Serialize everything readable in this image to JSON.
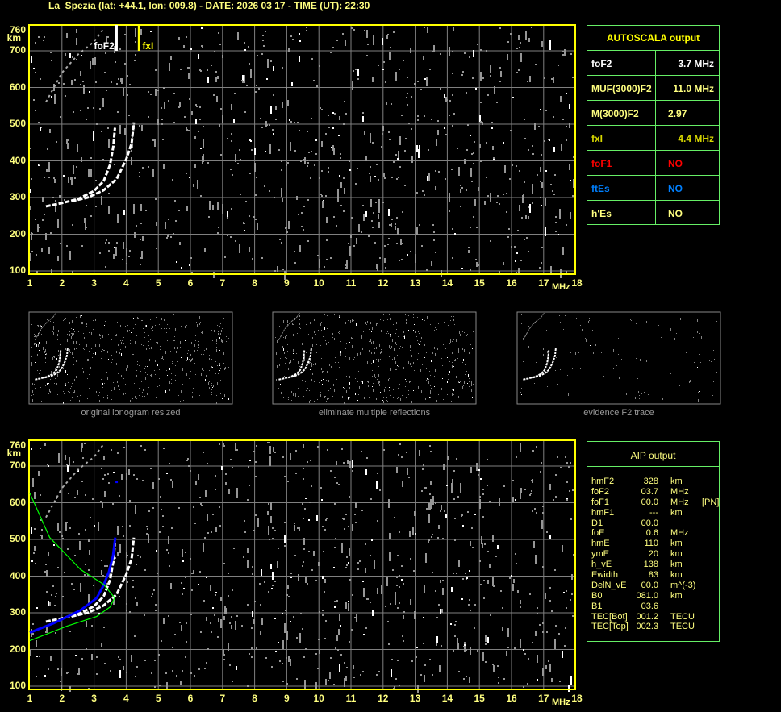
{
  "header": {
    "title": "La_Spezia (lat: +44.1, lon: 009.8) - DATE: 2026 03 17 - TIME (UT): 22:30"
  },
  "colors": {
    "axis": "#ffff00",
    "grid": "#808080",
    "trace": "#ffffff",
    "profile": "#00ff00",
    "aip_trace": "#0000ff",
    "table_border": "#66ee66"
  },
  "chart_data": [
    {
      "type": "scatter",
      "title": "",
      "xlabel": "MHz",
      "ylabel": "km",
      "xlim": [
        1,
        18
      ],
      "ylim": [
        100,
        760
      ],
      "grid": true,
      "xticks": [
        "1",
        "2",
        "3",
        "4",
        "5",
        "6",
        "7",
        "8",
        "9",
        "10",
        "11",
        "12",
        "13",
        "14",
        "15",
        "16",
        "17",
        "18"
      ],
      "yticks": [
        "760",
        "700",
        "600",
        "500",
        "400",
        "300",
        "200",
        "100"
      ],
      "markers": [
        {
          "label": "foF2",
          "freq": 3.7,
          "color": "#ffffff"
        },
        {
          "label": "fxI",
          "freq": 4.4,
          "color": "#ffff00"
        }
      ],
      "series": [
        {
          "kind": "o-trace",
          "points": [
            [
              1.5,
              276
            ],
            [
              2,
              285
            ],
            [
              2.5,
              296
            ],
            [
              3,
              318
            ],
            [
              3.3,
              345
            ],
            [
              3.5,
              390
            ],
            [
              3.6,
              440
            ],
            [
              3.65,
              490
            ]
          ]
        },
        {
          "kind": "x-trace",
          "points": [
            [
              2.3,
              290
            ],
            [
              2.8,
              300
            ],
            [
              3.3,
              320
            ],
            [
              3.7,
              350
            ],
            [
              4.0,
              404
            ],
            [
              4.17,
              448
            ],
            [
              4.24,
              505
            ]
          ]
        },
        {
          "kind": "second-hop",
          "points": [
            [
              1.5,
              560
            ],
            [
              2,
              640
            ],
            [
              2.5,
              690
            ],
            [
              3,
              725
            ],
            [
              3.3,
              760
            ]
          ]
        }
      ]
    },
    {
      "type": "scatter",
      "title": "",
      "xlabel": "MHz",
      "ylabel": "km",
      "xlim": [
        1,
        18
      ],
      "ylim": [
        100,
        760
      ],
      "grid": true,
      "xticks": [
        "1",
        "2",
        "3",
        "4",
        "5",
        "6",
        "7",
        "8",
        "9",
        "10",
        "11",
        "12",
        "13",
        "14",
        "15",
        "16",
        "17",
        "18"
      ],
      "yticks": [
        "760",
        "700",
        "600",
        "500",
        "400",
        "300",
        "200",
        "100"
      ],
      "series": [
        {
          "kind": "o-trace",
          "points": [
            [
              1.5,
              276
            ],
            [
              2,
              285
            ],
            [
              2.5,
              296
            ],
            [
              3,
              318
            ],
            [
              3.3,
              345
            ],
            [
              3.5,
              390
            ],
            [
              3.6,
              440
            ],
            [
              3.65,
              490
            ]
          ]
        },
        {
          "kind": "x-trace",
          "points": [
            [
              2.3,
              290
            ],
            [
              2.8,
              300
            ],
            [
              3.3,
              320
            ],
            [
              3.7,
              350
            ],
            [
              4.0,
              404
            ],
            [
              4.17,
              448
            ],
            [
              4.24,
              505
            ]
          ]
        },
        {
          "kind": "second-hop",
          "points": [
            [
              1.5,
              560
            ],
            [
              2,
              640
            ],
            [
              2.5,
              690
            ],
            [
              3,
              725
            ],
            [
              3.3,
              760
            ]
          ]
        },
        {
          "kind": "aip-fit",
          "color": "#0000ff",
          "points": [
            [
              1,
              246
            ],
            [
              1.75,
              272
            ],
            [
              2.58,
              307
            ],
            [
              3.08,
              340
            ],
            [
              3.29,
              374
            ],
            [
              3.46,
              411
            ],
            [
              3.59,
              455
            ],
            [
              3.66,
              505
            ]
          ],
          "extra_point": [
            3.69,
            658
          ]
        },
        {
          "kind": "density-profile",
          "color": "#00ff00",
          "points": [
            [
              1,
              626
            ],
            [
              1.62,
              505
            ],
            [
              2.58,
              418
            ],
            [
              3.29,
              378
            ],
            [
              3.64,
              341
            ],
            [
              3.5,
              316
            ],
            [
              3.08,
              290
            ],
            [
              2.16,
              264
            ],
            [
              1,
              224
            ]
          ]
        }
      ]
    }
  ],
  "thumbnails": [
    {
      "caption": "original ionogram resized"
    },
    {
      "caption": "eliminate multiple reflections"
    },
    {
      "caption": "evidence F2 trace"
    }
  ],
  "autoscala": {
    "title": "AUTOSCALA output",
    "rows": [
      {
        "key": "foF2",
        "value": "3.7 MHz",
        "color": "#ffffff"
      },
      {
        "key": "MUF(3000)F2",
        "value": "11.0 MHz",
        "color": "#ffff80"
      },
      {
        "key": "M(3000)F2",
        "value": "2.97",
        "color": "#ffff80",
        "left": true
      },
      {
        "key": "fxI",
        "value": "4.4 MHz",
        "color": "#d8d800"
      },
      {
        "key": "foF1",
        "value": "NO",
        "color": "#ff0000",
        "left": true
      },
      {
        "key": "ftEs",
        "value": "NO",
        "color": "#0080ff",
        "left": true
      },
      {
        "key": "h'Es",
        "value": "NO",
        "color": "#ffff80",
        "left": true
      }
    ]
  },
  "aip": {
    "title": "AIP output",
    "rows": [
      [
        "hmF2",
        "328",
        "km",
        ""
      ],
      [
        "foF2",
        "03.7",
        "MHz",
        ""
      ],
      [
        "foF1",
        "00.0",
        "MHz",
        "[PN]"
      ],
      [
        "hmF1",
        "---",
        "km",
        ""
      ],
      [
        "D1",
        "00.0",
        "",
        ""
      ],
      [
        "foE",
        "0.6",
        "MHz",
        ""
      ],
      [
        "hmE",
        "110",
        "km",
        ""
      ],
      [
        "ymE",
        "20",
        "km",
        ""
      ],
      [
        "h_vE",
        "138",
        "km",
        ""
      ],
      [
        "Ewidth",
        "83",
        "km",
        ""
      ],
      [
        "DelN_vE",
        "00.0",
        "m^(-3)",
        ""
      ],
      [
        "B0",
        "081.0",
        "km",
        ""
      ],
      [
        "B1",
        "03.6",
        "",
        ""
      ],
      [
        "TEC[Bot]",
        "001.2",
        "TECU",
        ""
      ],
      [
        "TEC[Top]",
        "002.3",
        "TECU",
        ""
      ]
    ]
  }
}
